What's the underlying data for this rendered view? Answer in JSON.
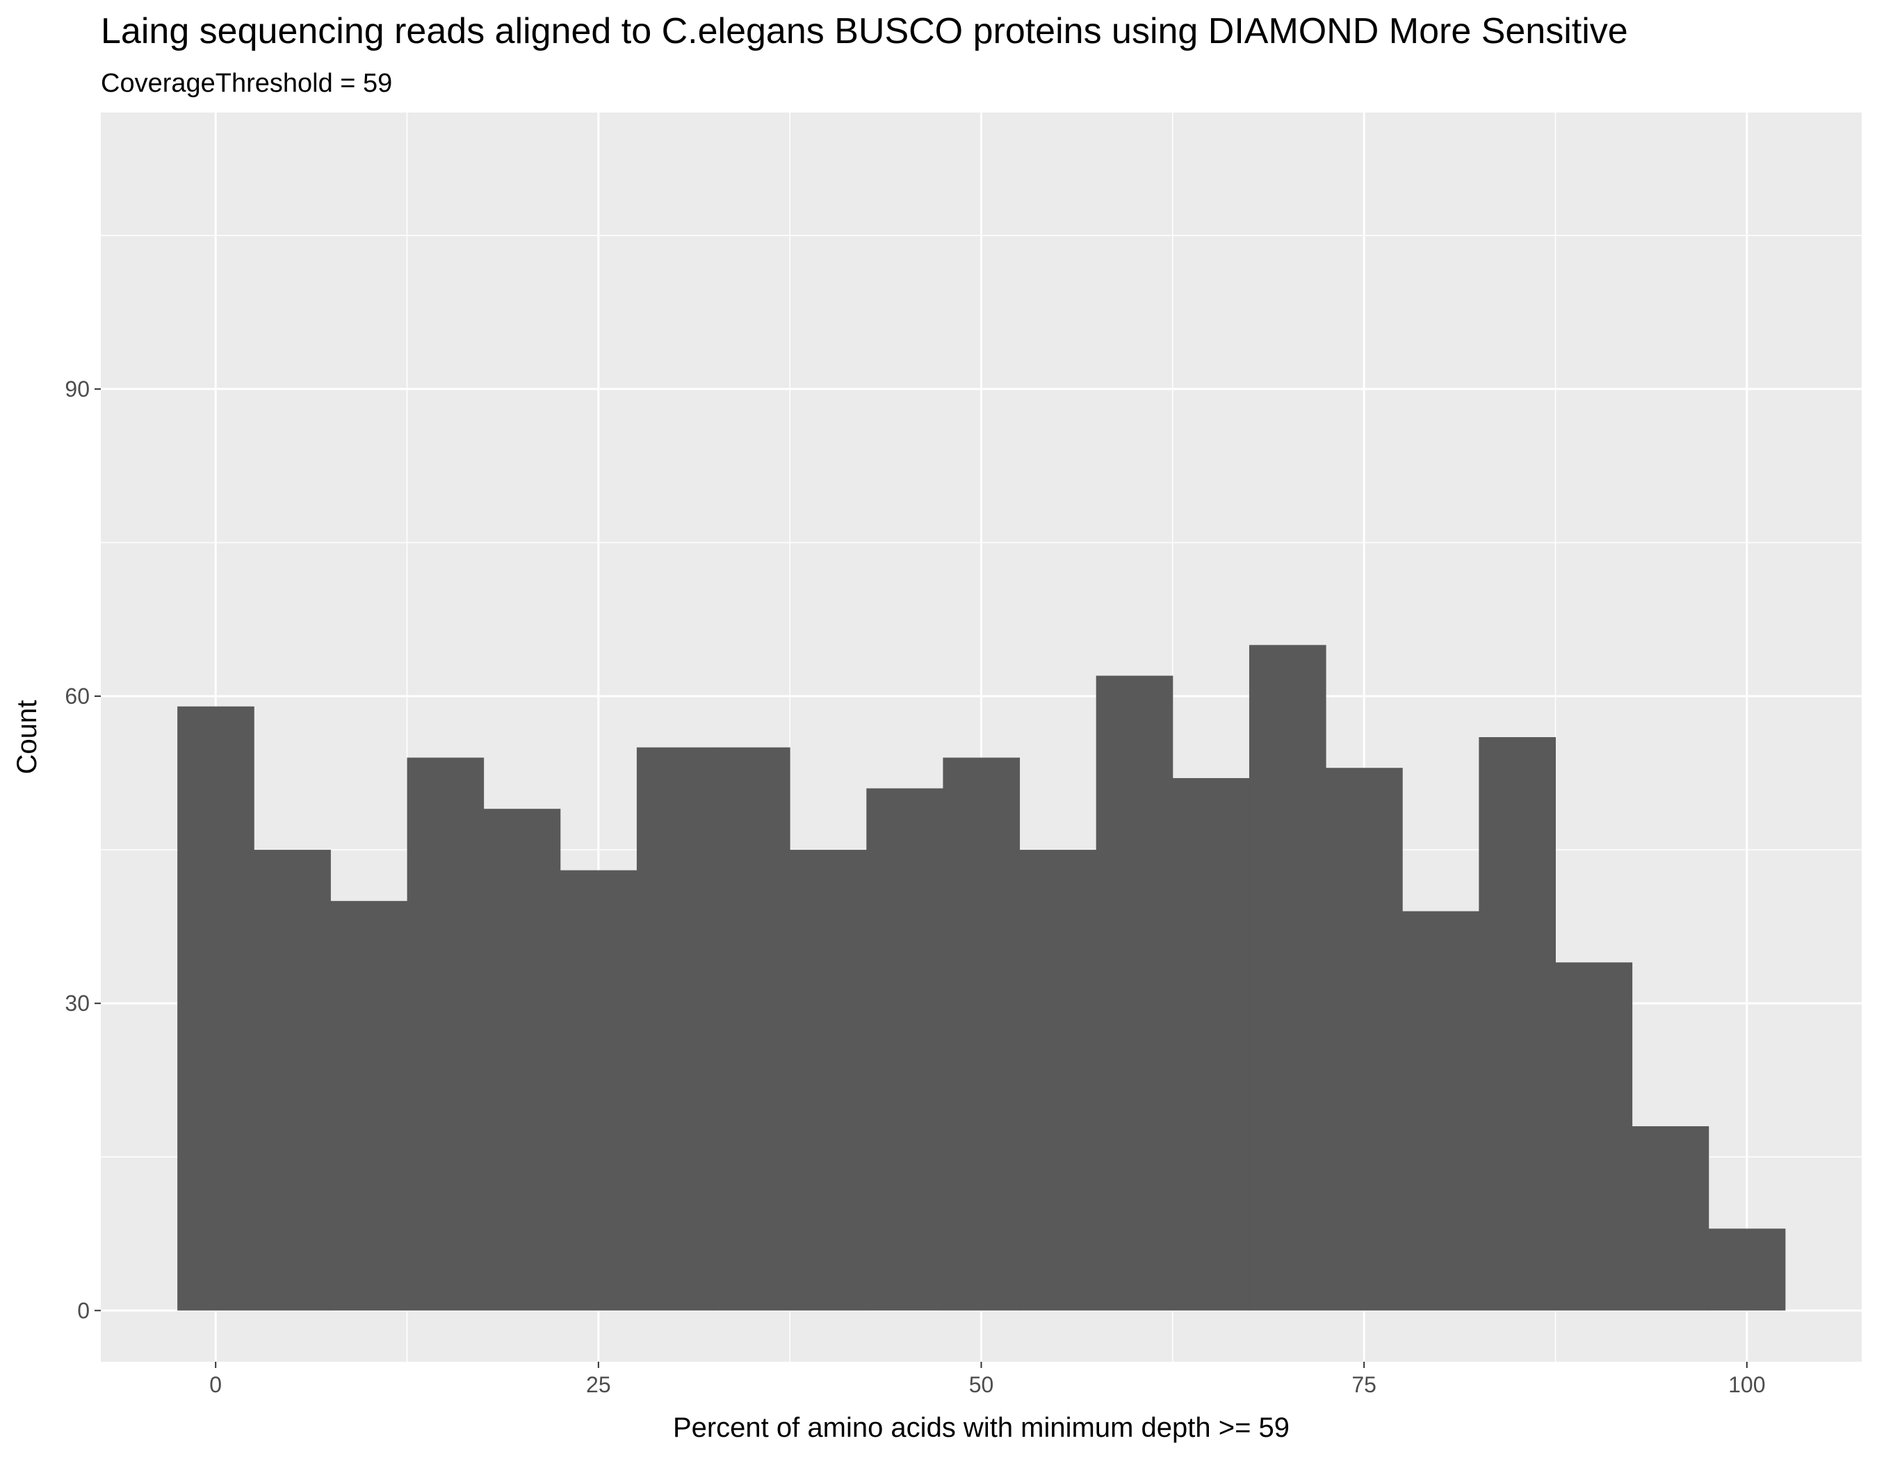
{
  "chart_data": {
    "type": "histogram",
    "title": "Laing sequencing reads aligned to C.elegans BUSCO proteins using DIAMOND More Sensitive",
    "subtitle": "CoverageThreshold = 59",
    "xlabel": "Percent of amino acids with minimum depth >=  59",
    "ylabel": "Count",
    "xlim": [
      -7.5,
      107.5
    ],
    "ylim": [
      -5,
      117
    ],
    "x_ticks": [
      0,
      25,
      50,
      75,
      100
    ],
    "x_tick_labels": [
      "0",
      "25",
      "50",
      "75",
      "100"
    ],
    "y_ticks": [
      0,
      30,
      60,
      90
    ],
    "y_tick_labels": [
      "0",
      "30",
      "60",
      "90"
    ],
    "x_minor_ticks": [
      12.5,
      37.5,
      62.5,
      87.5
    ],
    "y_minor_ticks": [
      15,
      45,
      75,
      105
    ],
    "grid": true,
    "bin_width": 5,
    "bins": [
      {
        "x0": -2.5,
        "x1": 2.5,
        "count": 59
      },
      {
        "x0": 2.5,
        "x1": 7.5,
        "count": 45
      },
      {
        "x0": 7.5,
        "x1": 12.5,
        "count": 40
      },
      {
        "x0": 12.5,
        "x1": 17.5,
        "count": 54
      },
      {
        "x0": 17.5,
        "x1": 22.5,
        "count": 49
      },
      {
        "x0": 22.5,
        "x1": 27.5,
        "count": 43
      },
      {
        "x0": 27.5,
        "x1": 32.5,
        "count": 55
      },
      {
        "x0": 32.5,
        "x1": 37.5,
        "count": 55
      },
      {
        "x0": 37.5,
        "x1": 42.5,
        "count": 45
      },
      {
        "x0": 42.5,
        "x1": 47.5,
        "count": 51
      },
      {
        "x0": 47.5,
        "x1": 52.5,
        "count": 54
      },
      {
        "x0": 52.5,
        "x1": 57.5,
        "count": 45
      },
      {
        "x0": 57.5,
        "x1": 62.5,
        "count": 62
      },
      {
        "x0": 62.5,
        "x1": 67.5,
        "count": 52
      },
      {
        "x0": 67.5,
        "x1": 72.5,
        "count": 65
      },
      {
        "x0": 72.5,
        "x1": 77.5,
        "count": 53
      },
      {
        "x0": 77.5,
        "x1": 82.5,
        "count": 39
      },
      {
        "x0": 82.5,
        "x1": 87.5,
        "count": 56
      },
      {
        "x0": 87.5,
        "x1": 92.5,
        "count": 34
      },
      {
        "x0": 92.5,
        "x1": 97.5,
        "count": 18
      },
      {
        "x0": 97.5,
        "x1": 102.5,
        "count": 8
      }
    ],
    "colors": {
      "bar_fill": "#595959",
      "panel_background": "#ebebeb",
      "grid_line": "#ffffff",
      "tick_text": "#4d4d4d",
      "tick_mark": "#333333"
    }
  }
}
